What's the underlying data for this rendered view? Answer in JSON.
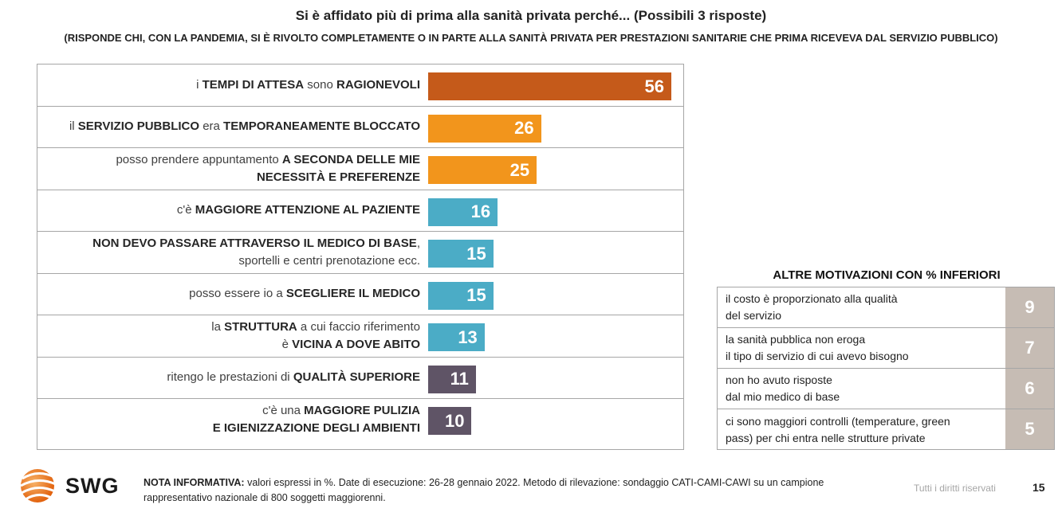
{
  "header": {
    "title": "Si è affidato più di prima alla sanità privata perché... (Possibili 3 risposte)",
    "subtitle": "(RISPONDE CHI, CON LA PANDEMIA, SI È RIVOLTO COMPLETAMENTE O IN PARTE ALLA SANITÀ PRIVATA PER PRESTAZIONI SANITARIE CHE PRIMA RICEVEVA DAL SERVIZIO PUBBLICO)"
  },
  "chart_data": [
    {
      "type": "bar",
      "orientation": "horizontal",
      "title": "",
      "xlim": [
        0,
        56
      ],
      "grid": false,
      "categories": [
        [
          {
            "t": "i ",
            "b": false
          },
          {
            "t": "TEMPI DI ATTESA",
            "b": true
          },
          {
            "t": " sono ",
            "b": false
          },
          {
            "t": "RAGIONEVOLI",
            "b": true
          }
        ],
        [
          {
            "t": "il ",
            "b": false
          },
          {
            "t": "SERVIZIO PUBBLICO",
            "b": true
          },
          {
            "t": " era ",
            "b": false
          },
          {
            "t": "TEMPORANEAMENTE BLOCCATO",
            "b": true
          }
        ],
        [
          {
            "t": "posso prendere appuntamento ",
            "b": false
          },
          {
            "t": "A SECONDA DELLE MIE",
            "b": true
          },
          {
            "t": "\n",
            "b": false
          },
          {
            "t": "NECESSITÀ E PREFERENZE",
            "b": true
          }
        ],
        [
          {
            "t": "c'è ",
            "b": false
          },
          {
            "t": "MAGGIORE ATTENZIONE AL PAZIENTE",
            "b": true
          }
        ],
        [
          {
            "t": "NON DEVO PASSARE ATTRAVERSO IL MEDICO DI BASE",
            "b": true
          },
          {
            "t": ",",
            "b": false
          },
          {
            "t": "\n",
            "b": false
          },
          {
            "t": "sportelli e centri prenotazione ecc.",
            "b": false
          }
        ],
        [
          {
            "t": "posso essere io a ",
            "b": false
          },
          {
            "t": "SCEGLIERE IL MEDICO",
            "b": true
          }
        ],
        [
          {
            "t": "la ",
            "b": false
          },
          {
            "t": "STRUTTURA",
            "b": true
          },
          {
            "t": " a cui faccio riferimento",
            "b": false
          },
          {
            "t": "\n",
            "b": false
          },
          {
            "t": "è ",
            "b": false
          },
          {
            "t": "VICINA A DOVE ABITO",
            "b": true
          }
        ],
        [
          {
            "t": "ritengo le prestazioni di ",
            "b": false
          },
          {
            "t": "QUALITÀ SUPERIORE",
            "b": true
          }
        ],
        [
          {
            "t": "c'è una ",
            "b": false
          },
          {
            "t": "MAGGIORE PULIZIA",
            "b": true
          },
          {
            "t": "\n",
            "b": false
          },
          {
            "t": "E IGIENIZZAZIONE DEGLI AMBIENTI",
            "b": true
          }
        ]
      ],
      "values": [
        56,
        26,
        25,
        16,
        15,
        15,
        13,
        11,
        10
      ],
      "colors": [
        "#c55a1a",
        "#f2951c",
        "#f2951c",
        "#4bacc6",
        "#4bacc6",
        "#4bacc6",
        "#4bacc6",
        "#5f5466",
        "#5f5466"
      ]
    },
    {
      "type": "table",
      "title": "ALTRE MOTIVAZIONI CON % INFERIORI",
      "rows": [
        {
          "label": [
            "il costo è proporzionato alla qualità",
            "del servizio"
          ],
          "value": 9
        },
        {
          "label": [
            "la sanità pubblica non eroga",
            "il tipo di servizio di cui avevo bisogno"
          ],
          "value": 7
        },
        {
          "label": [
            "non ho avuto risposte",
            "dal mio medico di base"
          ],
          "value": 6
        },
        {
          "label": [
            "ci sono maggiori controlli (temperature, green",
            "pass) per chi entra nelle strutture private"
          ],
          "value": 5
        }
      ],
      "value_color": "#c6bcb4"
    }
  ],
  "footer": {
    "logo_text": "SWG",
    "logo_icon": "globe-icon",
    "note_label": "NOTA INFORMATIVA:",
    "note_text": " valori espressi in %. Date di esecuzione: 26-28 gennaio 2022. Metodo di rilevazione: sondaggio CATI-CAMI-CAWI su un campione rappresentativo nazionale di 800 soggetti maggiorenni.",
    "rights": "Tutti i diritti riservati",
    "page": "15"
  }
}
